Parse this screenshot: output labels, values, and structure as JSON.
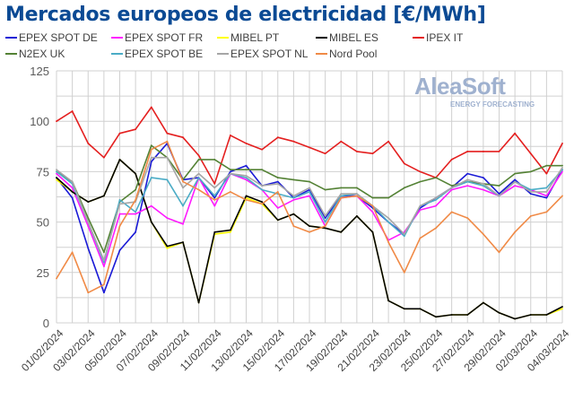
{
  "chart_data": {
    "type": "line",
    "title": "Mercados europeos de electricidad [€/MWh]",
    "xlabel": "",
    "ylabel": "",
    "ylim": [
      0,
      125
    ],
    "yticks": [
      0,
      25,
      50,
      75,
      100,
      125
    ],
    "grid": true,
    "legend_position": "top",
    "x": [
      "01/02/2024",
      "02/02/2024",
      "03/02/2024",
      "04/02/2024",
      "05/02/2024",
      "06/02/2024",
      "07/02/2024",
      "08/02/2024",
      "09/02/2024",
      "10/02/2024",
      "11/02/2024",
      "12/02/2024",
      "13/02/2024",
      "14/02/2024",
      "15/02/2024",
      "16/02/2024",
      "17/02/2024",
      "18/02/2024",
      "19/02/2024",
      "20/02/2024",
      "21/02/2024",
      "22/02/2024",
      "23/02/2024",
      "24/02/2024",
      "25/02/2024",
      "26/02/2024",
      "27/02/2024",
      "28/02/2024",
      "29/02/2024",
      "01/03/2024",
      "02/03/2024",
      "03/03/2024",
      "04/03/2024"
    ],
    "xtick_labels": [
      "01/02/2024",
      "03/02/2024",
      "05/02/2024",
      "07/02/2024",
      "09/02/2024",
      "11/02/2024",
      "13/02/2024",
      "15/02/2024",
      "17/02/2024",
      "19/02/2024",
      "21/02/2024",
      "23/02/2024",
      "25/02/2024",
      "27/02/2024",
      "29/02/2024",
      "02/03/2024",
      "04/03/2024"
    ],
    "series": [
      {
        "name": "EPEX SPOT DE",
        "color": "#1a1ad6",
        "values": [
          72,
          62,
          37,
          15,
          36,
          45,
          80,
          89,
          71,
          72,
          62,
          75,
          78,
          68,
          70,
          62,
          66,
          52,
          63,
          63,
          57,
          50,
          44,
          57,
          62,
          67,
          74,
          72,
          64,
          71,
          64,
          62,
          76
        ]
      },
      {
        "name": "EPEX SPOT FR",
        "color": "#ff1aff",
        "values": [
          74,
          67,
          48,
          28,
          54,
          54,
          58,
          52,
          49,
          72,
          58,
          74,
          71,
          66,
          57,
          61,
          63,
          48,
          62,
          63,
          55,
          41,
          45,
          56,
          58,
          66,
          68,
          66,
          63,
          68,
          66,
          63,
          75
        ]
      },
      {
        "name": "MIBEL PT",
        "color": "#ffff00",
        "values": [
          71,
          65,
          60,
          63,
          81,
          74,
          50,
          37,
          40,
          10,
          44,
          45,
          62,
          59,
          51,
          54,
          48,
          47,
          45,
          53,
          45,
          11,
          7,
          7,
          3,
          4,
          4,
          10,
          5,
          2,
          4,
          4,
          7
        ]
      },
      {
        "name": "MIBEL ES",
        "color": "#000000",
        "values": [
          72,
          65,
          60,
          63,
          81,
          74,
          50,
          38,
          40,
          10,
          45,
          46,
          63,
          60,
          51,
          54,
          48,
          47,
          45,
          53,
          45,
          11,
          7,
          7,
          3,
          4,
          4,
          10,
          5,
          2,
          4,
          4,
          8
        ]
      },
      {
        "name": "IPEX IT",
        "color": "#e41f1f",
        "values": [
          100,
          105,
          89,
          82,
          94,
          96,
          107,
          94,
          92,
          83,
          69,
          93,
          89,
          86,
          92,
          90,
          87,
          84,
          90,
          85,
          84,
          90,
          79,
          75,
          72,
          81,
          85,
          85,
          85,
          94,
          84,
          74,
          89
        ]
      },
      {
        "name": "N2EX UK",
        "color": "#548235",
        "values": [
          75,
          70,
          52,
          35,
          60,
          66,
          88,
          82,
          71,
          81,
          81,
          76,
          76,
          76,
          72,
          71,
          70,
          66,
          67,
          67,
          62,
          62,
          67,
          70,
          72,
          68,
          70,
          69,
          68,
          74,
          75,
          78,
          78
        ]
      },
      {
        "name": "EPEX SPOT BE",
        "color": "#4bacc6",
        "values": [
          75,
          69,
          50,
          30,
          61,
          55,
          72,
          71,
          58,
          72,
          63,
          74,
          72,
          66,
          64,
          62,
          65,
          50,
          63,
          64,
          58,
          50,
          43,
          58,
          61,
          67,
          70,
          68,
          63,
          70,
          66,
          67,
          76
        ]
      },
      {
        "name": "EPEX SPOT NL",
        "color": "#a6a6a6",
        "values": [
          76,
          70,
          50,
          31,
          59,
          60,
          82,
          82,
          67,
          74,
          67,
          74,
          73,
          68,
          69,
          63,
          67,
          53,
          64,
          64,
          58,
          52,
          44,
          58,
          62,
          67,
          71,
          69,
          63,
          70,
          65,
          65,
          77
        ]
      },
      {
        "name": "Nord Pool",
        "color": "#f08a46",
        "values": [
          22,
          35,
          15,
          19,
          48,
          61,
          86,
          90,
          70,
          66,
          61,
          65,
          61,
          59,
          65,
          48,
          45,
          48,
          62,
          63,
          58,
          40,
          25,
          42,
          47,
          55,
          52,
          44,
          35,
          45,
          53,
          55,
          63
        ]
      }
    ]
  },
  "logo": {
    "name": "AleaSoft",
    "tagline": "ENERGY FORECASTING"
  }
}
